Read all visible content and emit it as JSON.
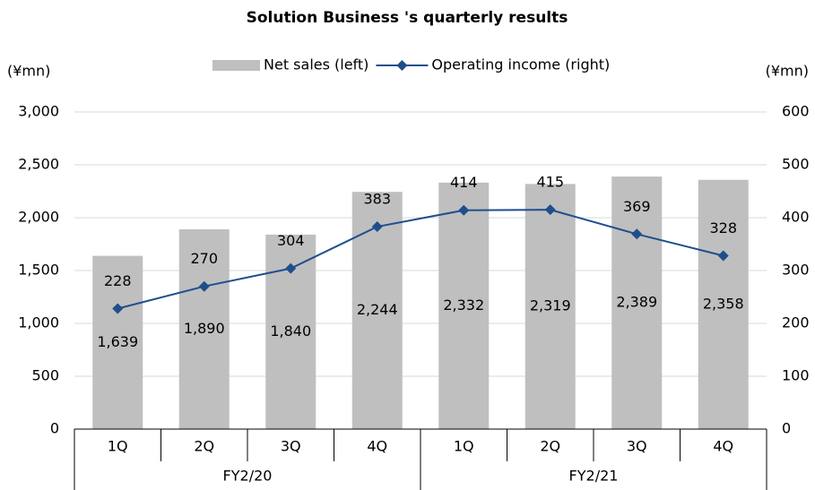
{
  "chart_data": {
    "type": "bar_line",
    "title": "Solution Business 's quarterly results",
    "y_label": "(¥mn)",
    "y2_label": "(¥mn)",
    "categories": [
      "1Q",
      "2Q",
      "3Q",
      "4Q",
      "1Q",
      "2Q",
      "3Q",
      "4Q"
    ],
    "groups": [
      "FY2/20",
      "FY2/21"
    ],
    "series": [
      {
        "name": "Net sales (left)",
        "type": "bar",
        "color": "#bfbfbf",
        "values": [
          1639,
          1890,
          1840,
          2244,
          2332,
          2319,
          2389,
          2358
        ],
        "value_labels": [
          "1,639",
          "1,890",
          "1,840",
          "2,244",
          "2,332",
          "2,319",
          "2,389",
          "2,358"
        ]
      },
      {
        "name": "Operating income (right)",
        "type": "line",
        "color": "#1f4e8c",
        "axis": "y2",
        "values": [
          228,
          270,
          304,
          383,
          414,
          415,
          369,
          328
        ]
      }
    ],
    "ylim": [
      0,
      3000
    ],
    "yticks": [
      0,
      500,
      {
        "value": 1000,
        "label": "1,000"
      },
      {
        "value": 1500,
        "label": "1,500"
      },
      {
        "value": 2000,
        "label": "2,000"
      },
      {
        "value": 2500,
        "label": "2,500"
      },
      {
        "value": 3000,
        "label": "3,000"
      }
    ],
    "y2lim": [
      0,
      600
    ],
    "y2ticks": [
      0,
      100,
      200,
      300,
      400,
      500,
      600
    ],
    "grid": true,
    "legend": "top"
  }
}
